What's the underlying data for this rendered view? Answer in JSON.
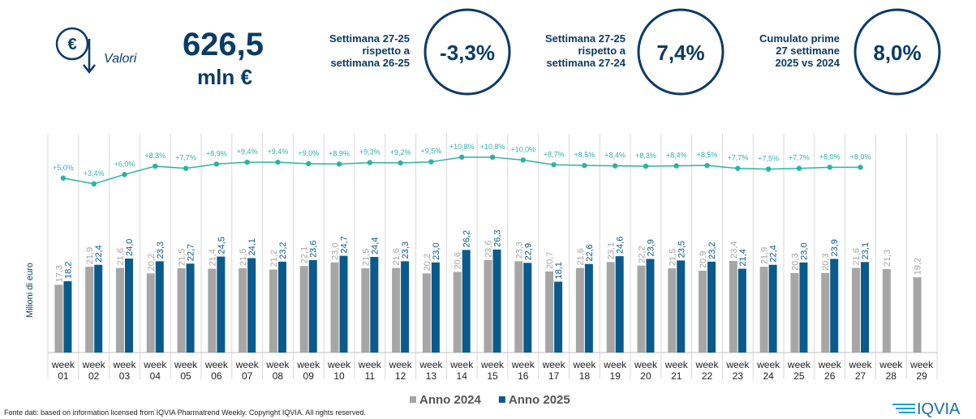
{
  "header": {
    "icon_label": "Valori",
    "total_value": "626,5",
    "total_unit": "mln €",
    "kpis": [
      {
        "lines": [
          "Settimana 27-25",
          "rispetto a",
          "settimana 26-25"
        ],
        "value": "-3,3%"
      },
      {
        "lines": [
          "Settimana 27-25",
          "rispetto a",
          "settimana 27-24"
        ],
        "value": "7,4%"
      },
      {
        "lines": [
          "Cumulato prime",
          "27 settimane",
          "2025 vs 2024"
        ],
        "value": "8,0%"
      }
    ]
  },
  "chart_data": {
    "type": "bar",
    "ylabel": "Milioni di euro",
    "ylim": [
      0,
      30
    ],
    "y2lim": [
      0,
      20
    ],
    "grid": false,
    "legend": "bottom",
    "categories": [
      "week 01",
      "week 02",
      "week 03",
      "week 04",
      "week 05",
      "week 06",
      "week 07",
      "week 08",
      "week 09",
      "week 10",
      "week 11",
      "week 12",
      "week 13",
      "week 14",
      "week 15",
      "week 16",
      "week 17",
      "week 18",
      "week 19",
      "week 20",
      "week 21",
      "week 22",
      "week 23",
      "week 24",
      "week 25",
      "week 26",
      "week 27",
      "week 28",
      "week 29"
    ],
    "series": [
      {
        "name": "Anno 2024",
        "color": "#a6a6a6",
        "values": [
          17.3,
          21.9,
          21.6,
          20.2,
          21.5,
          21.4,
          21.5,
          21.2,
          22.1,
          23.0,
          21.5,
          21.6,
          20.2,
          20.6,
          23.6,
          23.3,
          20.7,
          21.6,
          23.1,
          22.2,
          21.5,
          20.9,
          23.4,
          21.9,
          20.3,
          20.3,
          21.6,
          21.3,
          19.2
        ],
        "value_labels": [
          "17,3",
          "21,9",
          "21,6",
          "20,2",
          "21,5",
          "21,4",
          "21,5",
          "21,2",
          "22,1",
          "23,0",
          "21,5",
          "21,6",
          "20,2",
          "20,6",
          "23,6",
          "23,3",
          "20,7",
          "21,6",
          "23,1",
          "22,2",
          "21,5",
          "20,9",
          "23,4",
          "21,9",
          "20,3",
          "20,3",
          "21,6",
          "21,3",
          "19,2"
        ]
      },
      {
        "name": "Anno 2025",
        "color": "#0b5a8c",
        "values": [
          18.2,
          22.4,
          24.0,
          23.3,
          22.7,
          24.5,
          24.1,
          23.2,
          23.6,
          24.7,
          24.4,
          23.3,
          23.0,
          26.2,
          26.3,
          22.9,
          18.1,
          22.6,
          24.6,
          23.9,
          23.5,
          23.2,
          21.4,
          22.4,
          23.0,
          23.9,
          23.1,
          null,
          null
        ],
        "value_labels": [
          "18,2",
          "22,4",
          "24,0",
          "23,3",
          "22,7",
          "24,5",
          "24,1",
          "23,2",
          "23,6",
          "24,7",
          "24,4",
          "23,3",
          "23,0",
          "26,2",
          "26,3",
          "22,9",
          "18,1",
          "22,6",
          "24,6",
          "23,9",
          "23,5",
          "23,2",
          "21,4",
          "22,4",
          "23,0",
          "23,9",
          "23,1",
          null,
          null
        ]
      },
      {
        "type": "line",
        "axis": "y2",
        "color": "#2bb3a6",
        "values": [
          5.0,
          3.4,
          6.0,
          8.3,
          7.7,
          8.9,
          9.4,
          9.4,
          9.0,
          8.9,
          9.3,
          9.2,
          9.5,
          10.8,
          10.8,
          10.0,
          8.7,
          8.5,
          8.4,
          8.3,
          8.4,
          8.5,
          7.7,
          7.5,
          7.7,
          8.0,
          8.0,
          null,
          null
        ],
        "value_labels": [
          "+5,0%",
          "+3,4%",
          "+6,0%",
          "+8,3%",
          "+7,7%",
          "+8,9%",
          "+9,4%",
          "+9,4%",
          "+9,0%",
          "+8,9%",
          "+9,3%",
          "+9,2%",
          "+9,5%",
          "+10,8%",
          "+10,8%",
          "+10,0%",
          "+8,7%",
          "+8,5%",
          "+8,4%",
          "+8,3%",
          "+8,4%",
          "+8,5%",
          "+7,7%",
          "+7,5%",
          "+7,7%",
          "+8,0%",
          "+8,0%",
          null,
          null
        ]
      }
    ]
  },
  "footer": {
    "source": "Fonte dati: based on information licensed from IQVIA Pharmatrend Weekly. Copyright IQVIA. All rights reserved.",
    "logo": "IQVIA"
  }
}
